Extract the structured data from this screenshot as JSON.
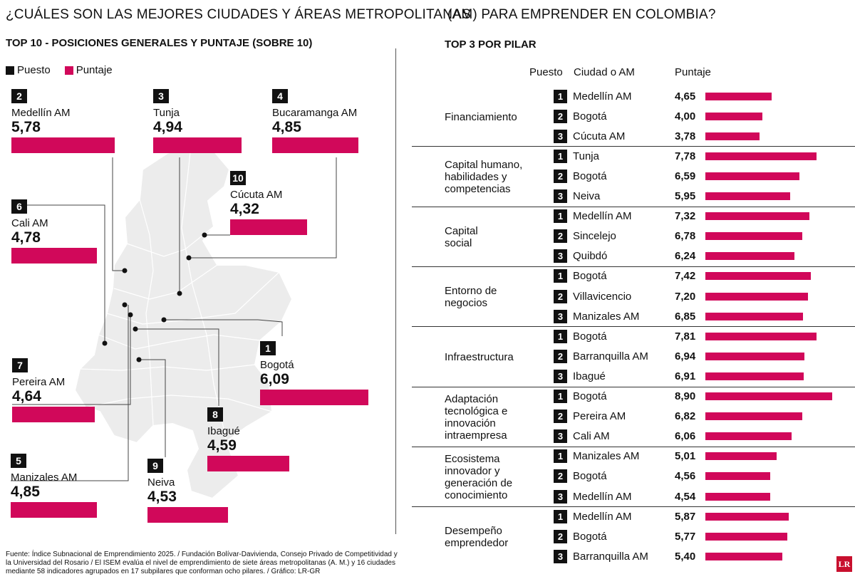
{
  "title_left": "¿CUÁLES SON LAS MEJORES CIUDADES Y ÁREAS METROPOLITANAS",
  "title_right": "(AM) PARA EMPRENDER EN COLOMBIA?",
  "left_subtitle": "TOP 10 - POSICIONES GENERALES Y PUNTAJE (SOBRE 10)",
  "right_subtitle": "TOP 3 POR PILAR",
  "legend": {
    "puesto": "Puesto",
    "puntaje": "Puntaje",
    "puesto_color": "#111111",
    "puntaje_color": "#d1085a"
  },
  "colors": {
    "accent": "#d1085a",
    "rank_box": "#111111"
  },
  "map_cities": [
    {
      "rank": "2",
      "name": "Medellín AM",
      "score": "5,78",
      "value": 5.78
    },
    {
      "rank": "3",
      "name": "Tunja",
      "score": "4,94",
      "value": 4.94
    },
    {
      "rank": "4",
      "name": "Bucaramanga AM",
      "score": "4,85",
      "value": 4.85
    },
    {
      "rank": "10",
      "name": "Cúcuta AM",
      "score": "4,32",
      "value": 4.32
    },
    {
      "rank": "6",
      "name": "Cali AM",
      "score": "4,78",
      "value": 4.78
    },
    {
      "rank": "1",
      "name": "Bogotá",
      "score": "6,09",
      "value": 6.09
    },
    {
      "rank": "7",
      "name": "Pereira AM",
      "score": "4,64",
      "value": 4.64
    },
    {
      "rank": "8",
      "name": "Ibagué",
      "score": "4,59",
      "value": 4.59
    },
    {
      "rank": "5",
      "name": "Manizales AM",
      "score": "4,85",
      "value": 4.85
    },
    {
      "rank": "9",
      "name": "Neiva",
      "score": "4,53",
      "value": 4.53
    }
  ],
  "table_headers": {
    "puesto": "Puesto",
    "ciudad": "Ciudad o AM",
    "puntaje": "Puntaje"
  },
  "pillars": [
    {
      "name": [
        "Financiamiento"
      ],
      "rows": [
        {
          "rank": "1",
          "city": "Medellín AM",
          "score": "4,65",
          "value": 4.65
        },
        {
          "rank": "2",
          "city": "Bogotá",
          "score": "4,00",
          "value": 4.0
        },
        {
          "rank": "3",
          "city": "Cúcuta AM",
          "score": "3,78",
          "value": 3.78
        }
      ]
    },
    {
      "name": [
        "Capital humano,",
        "habilidades y",
        "competencias"
      ],
      "rows": [
        {
          "rank": "1",
          "city": "Tunja",
          "score": "7,78",
          "value": 7.78
        },
        {
          "rank": "2",
          "city": "Bogotá",
          "score": "6,59",
          "value": 6.59
        },
        {
          "rank": "3",
          "city": "Neiva",
          "score": "5,95",
          "value": 5.95
        }
      ]
    },
    {
      "name": [
        "Capital",
        "social"
      ],
      "rows": [
        {
          "rank": "1",
          "city": "Medellín AM",
          "score": "7,32",
          "value": 7.32
        },
        {
          "rank": "2",
          "city": "Sincelejo",
          "score": "6,78",
          "value": 6.78
        },
        {
          "rank": "3",
          "city": "Quibdó",
          "score": "6,24",
          "value": 6.24
        }
      ]
    },
    {
      "name": [
        "Entorno de",
        "negocios"
      ],
      "rows": [
        {
          "rank": "1",
          "city": "Bogotá",
          "score": "7,42",
          "value": 7.42
        },
        {
          "rank": "2",
          "city": "Villavicencio",
          "score": "7,20",
          "value": 7.2
        },
        {
          "rank": "3",
          "city": "Manizales AM",
          "score": "6,85",
          "value": 6.85
        }
      ]
    },
    {
      "name": [
        "Infraestructura"
      ],
      "rows": [
        {
          "rank": "1",
          "city": "Bogotá",
          "score": "7,81",
          "value": 7.81
        },
        {
          "rank": "2",
          "city": "Barranquilla AM",
          "score": "6,94",
          "value": 6.94
        },
        {
          "rank": "3",
          "city": "Ibagué",
          "score": "6,91",
          "value": 6.91
        }
      ]
    },
    {
      "name": [
        "Adaptación",
        "tecnológica e",
        "innovación",
        "intraempresa"
      ],
      "rows": [
        {
          "rank": "1",
          "city": "Bogotá",
          "score": "8,90",
          "value": 8.9
        },
        {
          "rank": "2",
          "city": "Pereira AM",
          "score": "6,82",
          "value": 6.82
        },
        {
          "rank": "3",
          "city": "Cali AM",
          "score": "6,06",
          "value": 6.06
        }
      ]
    },
    {
      "name": [
        "Ecosistema",
        "innovador y",
        "generación de",
        "conocimiento"
      ],
      "rows": [
        {
          "rank": "1",
          "city": "Manizales AM",
          "score": "5,01",
          "value": 5.01
        },
        {
          "rank": "2",
          "city": "Bogotá",
          "score": "4,56",
          "value": 4.56
        },
        {
          "rank": "3",
          "city": "Medellín AM",
          "score": "4,54",
          "value": 4.54
        }
      ]
    },
    {
      "name": [
        "Desempeño",
        "emprendedor"
      ],
      "rows": [
        {
          "rank": "1",
          "city": "Medellín AM",
          "score": "5,87",
          "value": 5.87
        },
        {
          "rank": "2",
          "city": "Bogotá",
          "score": "5,77",
          "value": 5.77
        },
        {
          "rank": "3",
          "city": "Barranquilla AM",
          "score": "5,40",
          "value": 5.4
        }
      ]
    }
  ],
  "source": "Fuente: Índice Subnacional de Emprendimiento 2025.  / Fundación Bolívar-Davivienda, Consejo Privado de Competitividad y la Universidad del Rosario / El ISEM evalúa el nivel de emprendimiento de siete áreas metropolitanas (A. M.) y 16 ciudades mediante 58 indicadores agrupados en 17 subpilares que conforman ocho pilares. / Gráfico: LR-GR",
  "logo_text": "LR"
}
